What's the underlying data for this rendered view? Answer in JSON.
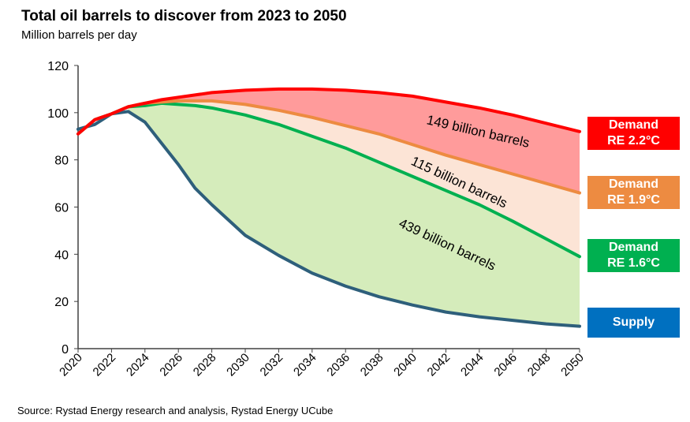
{
  "title": "Total oil barrels to discover from 2023 to 2050",
  "subtitle": "Million barrels per day",
  "source": "Source: Rystad Energy research and analysis, Rystad Energy UCube",
  "chart_data": {
    "type": "area",
    "title": "Total oil barrels to discover from 2023 to 2050",
    "ylabel": "Million barrels per day",
    "xlim": [
      2020,
      2050
    ],
    "ylim": [
      0,
      120
    ],
    "yticks": [
      0,
      20,
      40,
      60,
      80,
      100,
      120
    ],
    "xticks": [
      2020,
      2022,
      2024,
      2026,
      2028,
      2030,
      2032,
      2034,
      2036,
      2038,
      2040,
      2042,
      2044,
      2046,
      2048,
      2050
    ],
    "grid": false,
    "x": [
      2020,
      2021,
      2022,
      2023,
      2024,
      2025,
      2026,
      2027,
      2028,
      2030,
      2032,
      2034,
      2036,
      2038,
      2040,
      2042,
      2044,
      2046,
      2048,
      2050
    ],
    "series": [
      {
        "name": "Demand RE 2.2°C",
        "line1": "Demand",
        "line2": "RE 2.2°C",
        "color": "#ff0000",
        "fill": "#ff9b9b",
        "values": [
          91,
          97,
          99.5,
          102.5,
          104,
          105.5,
          106.5,
          107.5,
          108.5,
          109.5,
          110,
          110,
          109.5,
          108.5,
          107,
          104.5,
          102,
          99,
          95.5,
          92
        ]
      },
      {
        "name": "Demand RE 1.9°C",
        "line1": "Demand",
        "line2": "RE 1.9°C",
        "color": "#ed8b41",
        "fill": "#fce4d6",
        "values": [
          91,
          97,
          99.5,
          102.5,
          104,
          104.5,
          105,
          105,
          105,
          103.5,
          101,
          98,
          94.5,
          91,
          86.5,
          82,
          78,
          74,
          70,
          66
        ]
      },
      {
        "name": "Demand RE 1.6°C",
        "line1": "Demand",
        "line2": "RE 1.6°C",
        "color": "#00b050",
        "fill": "#d5ecbb",
        "values": [
          91,
          97,
          99.5,
          102.5,
          103,
          104,
          103.5,
          103,
          102,
          99,
          95,
          90,
          85,
          79,
          73,
          67,
          61,
          54,
          46.5,
          39
        ]
      },
      {
        "name": "Supply",
        "line1": "Supply",
        "line2": "",
        "color": "#2e5f7b",
        "tagcolor": "#0070c0",
        "values": [
          93,
          95,
          99.5,
          100.5,
          96,
          87,
          78,
          68,
          61,
          48,
          39.5,
          32,
          26.5,
          22,
          18.5,
          15.5,
          13.5,
          12,
          10.5,
          9.5
        ]
      }
    ],
    "annotations": [
      "149 billion barrels",
      "115 billion barrels",
      "439 billion barrels"
    ]
  }
}
